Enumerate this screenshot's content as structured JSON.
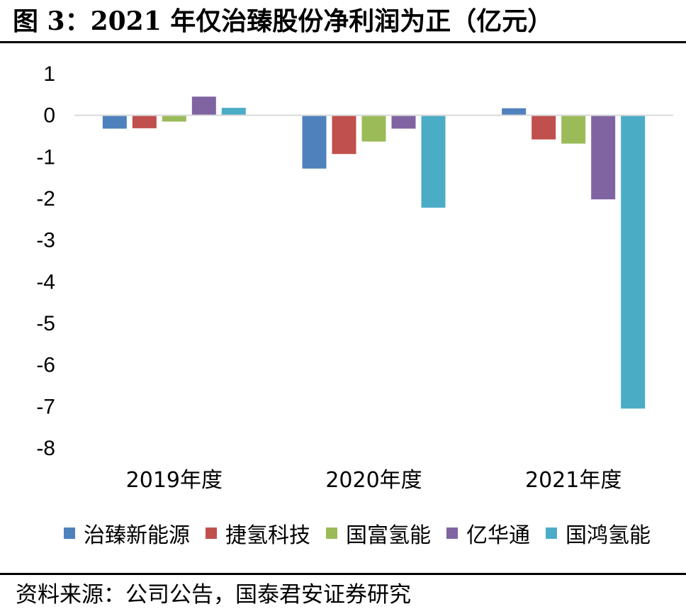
{
  "figure": {
    "title": "图 3：2021 年仅治臻股份净利润为正（亿元）",
    "source": "资料来源：公司公告，国泰君安证券研究"
  },
  "chart_data": {
    "type": "bar",
    "title": "2021 年仅治臻股份净利润为正（亿元）",
    "xlabel": "",
    "ylabel": "",
    "ylim": [
      -8,
      1
    ],
    "yticks": [
      1,
      0,
      -1,
      -2,
      -3,
      -4,
      -5,
      -6,
      -7,
      -8
    ],
    "ytick_labels": [
      "1",
      "0",
      "-1",
      "-2",
      "-3",
      "-4",
      "-5",
      "-6",
      "-7",
      "-8"
    ],
    "categories": [
      "2019年度",
      "2020年度",
      "2021年度"
    ],
    "series": [
      {
        "name": "治臻新能源",
        "color": "#4f81bd",
        "values": [
          -0.32,
          -1.28,
          0.17
        ]
      },
      {
        "name": "捷氢科技",
        "color": "#c0504d",
        "values": [
          -0.31,
          -0.93,
          -0.58
        ]
      },
      {
        "name": "国富氢能",
        "color": "#9bbb59",
        "values": [
          -0.15,
          -0.63,
          -0.68
        ]
      },
      {
        "name": "亿华通",
        "color": "#8064a2",
        "values": [
          0.45,
          -0.32,
          -2.02
        ]
      },
      {
        "name": "国鸿氢能",
        "color": "#4bacc6",
        "values": [
          0.18,
          -2.22,
          -7.05
        ]
      }
    ],
    "legend_position": "bottom"
  }
}
